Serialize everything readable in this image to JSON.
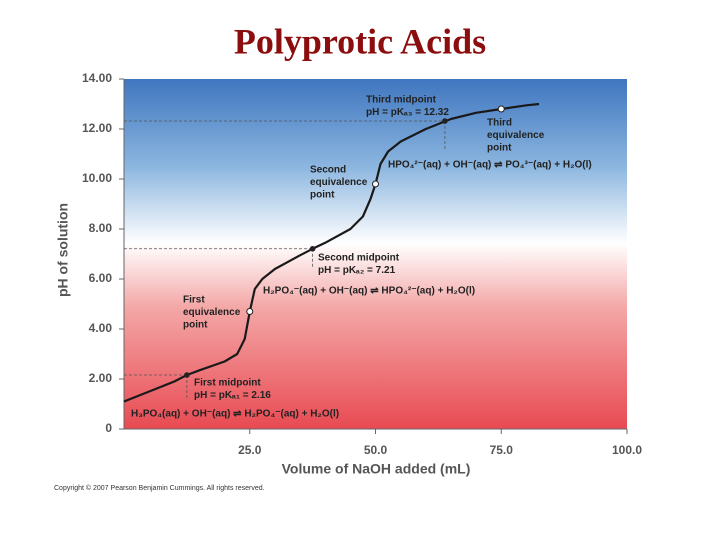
{
  "chart_data": {
    "type": "line",
    "title": "Polyprotic Acids",
    "x_label": "Volume of NaOH added (mL)",
    "y_label": "pH of solution",
    "xlim": [
      0,
      100
    ],
    "ylim": [
      0,
      14
    ],
    "xticks": [
      {
        "value": 25,
        "label": "25.0"
      },
      {
        "value": 50,
        "label": "50.0"
      },
      {
        "value": 75,
        "label": "75.0"
      },
      {
        "value": 100,
        "label": "100.0"
      }
    ],
    "yticks": [
      0,
      {
        "value": 2,
        "label": "2.00"
      },
      {
        "value": 4,
        "label": "4.00"
      },
      {
        "value": 6,
        "label": "6.00"
      },
      {
        "value": 8,
        "label": "8.00"
      },
      {
        "value": 10,
        "label": "10.00"
      },
      {
        "value": 12,
        "label": "12.00"
      },
      {
        "value": 14,
        "label": "14.00"
      }
    ],
    "series": [
      {
        "color": "#1a1a1a",
        "x": [
          0,
          5,
          10,
          12.5,
          15,
          20,
          22.5,
          24,
          25,
          26,
          27.5,
          30,
          35,
          37.5,
          40,
          45,
          47.5,
          49,
          50,
          51,
          52.5,
          55,
          60,
          62.5,
          65,
          70,
          75,
          80,
          82.5
        ],
        "values": [
          1.1,
          1.5,
          1.9,
          2.16,
          2.35,
          2.7,
          3.0,
          3.6,
          4.7,
          5.6,
          6.0,
          6.4,
          6.95,
          7.21,
          7.45,
          8.0,
          8.5,
          9.2,
          9.8,
          10.6,
          11.1,
          11.5,
          12.0,
          12.2,
          12.4,
          12.65,
          12.8,
          12.95,
          13.0
        ]
      }
    ],
    "midpoints": {
      "x": [
        12.5,
        37.5,
        63.8
      ],
      "values": [
        2.16,
        7.21,
        12.32
      ]
    },
    "equivalence_points": {
      "x": [
        25,
        50,
        75
      ],
      "values": [
        4.7,
        9.8,
        12.8
      ]
    },
    "annotations": [
      {
        "lines": [
          "Third midpoint",
          "pH = pKₐ₃ = 12.32"
        ]
      },
      {
        "lines": [
          "Third",
          "equivalence",
          "point"
        ]
      },
      {
        "lines": [
          "Second",
          "equivalence",
          "point"
        ]
      },
      {
        "lines": [
          "HPO₄²⁻(aq) + OH⁻(aq) ⇌ PO₄³⁻(aq) + H₂O(l)"
        ]
      },
      {
        "lines": [
          "Second midpoint",
          "pH = pKₐ₂ = 7.21"
        ]
      },
      {
        "lines": [
          "H₂PO₄⁻(aq) + OH⁻(aq) ⇌ HPO₄²⁻(aq) + H₂O(l)"
        ]
      },
      {
        "lines": [
          "First",
          "equivalence",
          "point"
        ]
      },
      {
        "lines": [
          "First midpoint",
          "pH = pKₐ₁ = 2.16"
        ]
      },
      {
        "lines": [
          "H₃PO₄(aq) + OH⁻(aq) ⇌ H₂PO₄⁻(aq) + H₂O(l)"
        ]
      }
    ],
    "copyright": "Copyright © 2007 Pearson Benjamin Cummings. All rights reserved."
  }
}
